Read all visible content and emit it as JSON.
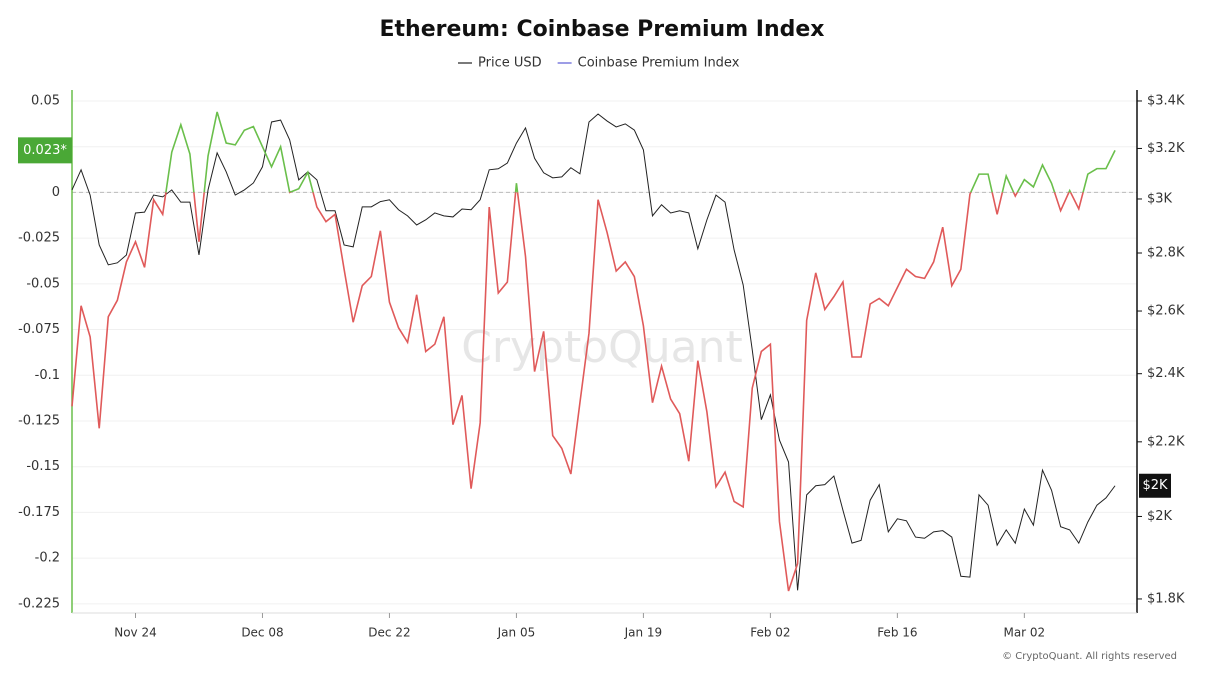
{
  "chart_data": {
    "type": "line",
    "title": "Ethereum: Coinbase Premium Index",
    "watermark": "CryptoQuant",
    "footer": "© CryptoQuant. All rights reserved",
    "categories": [
      null,
      null,
      null,
      null,
      null,
      null,
      null,
      "Nov 24",
      null,
      null,
      null,
      null,
      null,
      null,
      null,
      null,
      null,
      null,
      null,
      null,
      null,
      "Dec 08",
      null,
      null,
      null,
      null,
      null,
      null,
      null,
      null,
      null,
      null,
      null,
      null,
      null,
      "Dec 22",
      null,
      null,
      null,
      null,
      null,
      null,
      null,
      null,
      null,
      null,
      null,
      null,
      null,
      "Jan 05",
      null,
      null,
      null,
      null,
      null,
      null,
      null,
      null,
      null,
      null,
      null,
      null,
      null,
      "Jan 19",
      null,
      null,
      null,
      null,
      null,
      null,
      null,
      null,
      null,
      null,
      null,
      null,
      null,
      "Feb 02",
      null,
      null,
      null,
      null,
      null,
      null,
      null,
      null,
      null,
      null,
      null,
      null,
      null,
      "Feb 16",
      null,
      null,
      null,
      null,
      null,
      null,
      null,
      null,
      null,
      null,
      null,
      null,
      null,
      "Mar 02",
      null,
      null,
      null,
      null,
      null,
      null,
      null,
      null,
      null,
      null
    ],
    "series": [
      {
        "name": "Price USD",
        "color": "#222222",
        "axis": "y2",
        "values": [
          3035,
          3114,
          3015,
          2829,
          2758,
          2765,
          2793,
          2947,
          2950,
          3015,
          3008,
          3035,
          2988,
          2988,
          2793,
          3035,
          3182,
          3106,
          3015,
          3035,
          3062,
          3126,
          3310,
          3318,
          3235,
          3074,
          3106,
          3074,
          2955,
          2955,
          2829,
          2822,
          2970,
          2970,
          2990,
          2997,
          2959,
          2936,
          2902,
          2921,
          2947,
          2936,
          2932,
          2962,
          2959,
          2997,
          3114,
          3118,
          3141,
          3222,
          3285,
          3160,
          3102,
          3082,
          3086,
          3122,
          3098,
          3310,
          3344,
          3314,
          3289,
          3302,
          3276,
          3194,
          2936,
          2978,
          2947,
          2955,
          2947,
          2815,
          2921,
          3015,
          2988,
          2811,
          2688,
          2474,
          2263,
          2336,
          2205,
          2144,
          1820,
          2056,
          2080,
          2083,
          2106,
          2016,
          1933,
          1940,
          2042,
          2083,
          1961,
          1994,
          1989,
          1948,
          1945,
          1961,
          1964,
          1948,
          1853,
          1851,
          2056,
          2029,
          1928,
          1966,
          1933,
          2019,
          1978,
          2122,
          2068,
          1974,
          1966,
          1933,
          1986,
          2029,
          2048,
          2080
        ]
      },
      {
        "name": "Coinbase Premium Index",
        "color": "#5b5bd6",
        "positive_color": "#6abf4b",
        "negative_color": "#e05a5a",
        "values": [
          -0.117,
          -0.062,
          -0.079,
          -0.129,
          -0.068,
          -0.059,
          -0.038,
          -0.027,
          -0.041,
          -0.004,
          -0.012,
          0.022,
          0.037,
          0.021,
          -0.027,
          0.02,
          0.044,
          0.027,
          0.026,
          0.034,
          0.036,
          0.025,
          0.014,
          0.025,
          0.0,
          0.002,
          0.011,
          -0.008,
          -0.016,
          -0.012,
          -0.042,
          -0.071,
          -0.051,
          -0.046,
          -0.021,
          -0.06,
          -0.074,
          -0.082,
          -0.056,
          -0.087,
          -0.083,
          -0.068,
          -0.127,
          -0.111,
          -0.162,
          -0.126,
          -0.008,
          -0.055,
          -0.049,
          0.005,
          -0.035,
          -0.098,
          -0.076,
          -0.133,
          -0.14,
          -0.154,
          -0.115,
          -0.077,
          -0.004,
          -0.022,
          -0.043,
          -0.038,
          -0.046,
          -0.073,
          -0.115,
          -0.095,
          -0.113,
          -0.121,
          -0.147,
          -0.092,
          -0.12,
          -0.161,
          -0.153,
          -0.169,
          -0.172,
          -0.107,
          -0.087,
          -0.083,
          -0.18,
          -0.218,
          -0.203,
          -0.07,
          -0.044,
          -0.064,
          -0.057,
          -0.049,
          -0.09,
          -0.09,
          -0.061,
          -0.058,
          -0.062,
          -0.052,
          -0.042,
          -0.046,
          -0.047,
          -0.038,
          -0.019,
          -0.051,
          -0.042,
          -0.001,
          0.01,
          0.01,
          -0.012,
          0.009,
          -0.002,
          0.007,
          0.003,
          0.015,
          0.005,
          -0.01,
          0.001,
          -0.009,
          0.01,
          0.013,
          0.013,
          0.023
        ]
      }
    ],
    "ylim": [
      -0.23,
      0.056
    ],
    "yticks": [
      0.05,
      0.025,
      0,
      -0.025,
      -0.05,
      -0.075,
      -0.1,
      -0.125,
      -0.15,
      -0.175,
      -0.2,
      -0.225
    ],
    "y_axis_color": "#6abf4b",
    "y2lim": [
      1768,
      3448
    ],
    "y2_log": true,
    "y2ticks": [
      {
        "value": 3400,
        "label": "$3.4K"
      },
      {
        "value": 3200,
        "label": "$3.2K"
      },
      {
        "value": 3000,
        "label": "$3K"
      },
      {
        "value": 2800,
        "label": "$2.8K"
      },
      {
        "value": 2600,
        "label": "$2.6K"
      },
      {
        "value": 2400,
        "label": "$2.4K"
      },
      {
        "value": 2200,
        "label": "$2.2K"
      },
      {
        "value": 2000,
        "label": "$2K"
      },
      {
        "value": 1800,
        "label": "$1.8K"
      }
    ],
    "grid": true,
    "zero_line": true,
    "legend": "top",
    "annotations": [
      {
        "value": 0.023,
        "label": "0.023*",
        "axis": "y",
        "color": "#4aa836"
      },
      {
        "value": 2080,
        "label": "$2K",
        "axis": "y2",
        "color": "#111111"
      }
    ]
  }
}
